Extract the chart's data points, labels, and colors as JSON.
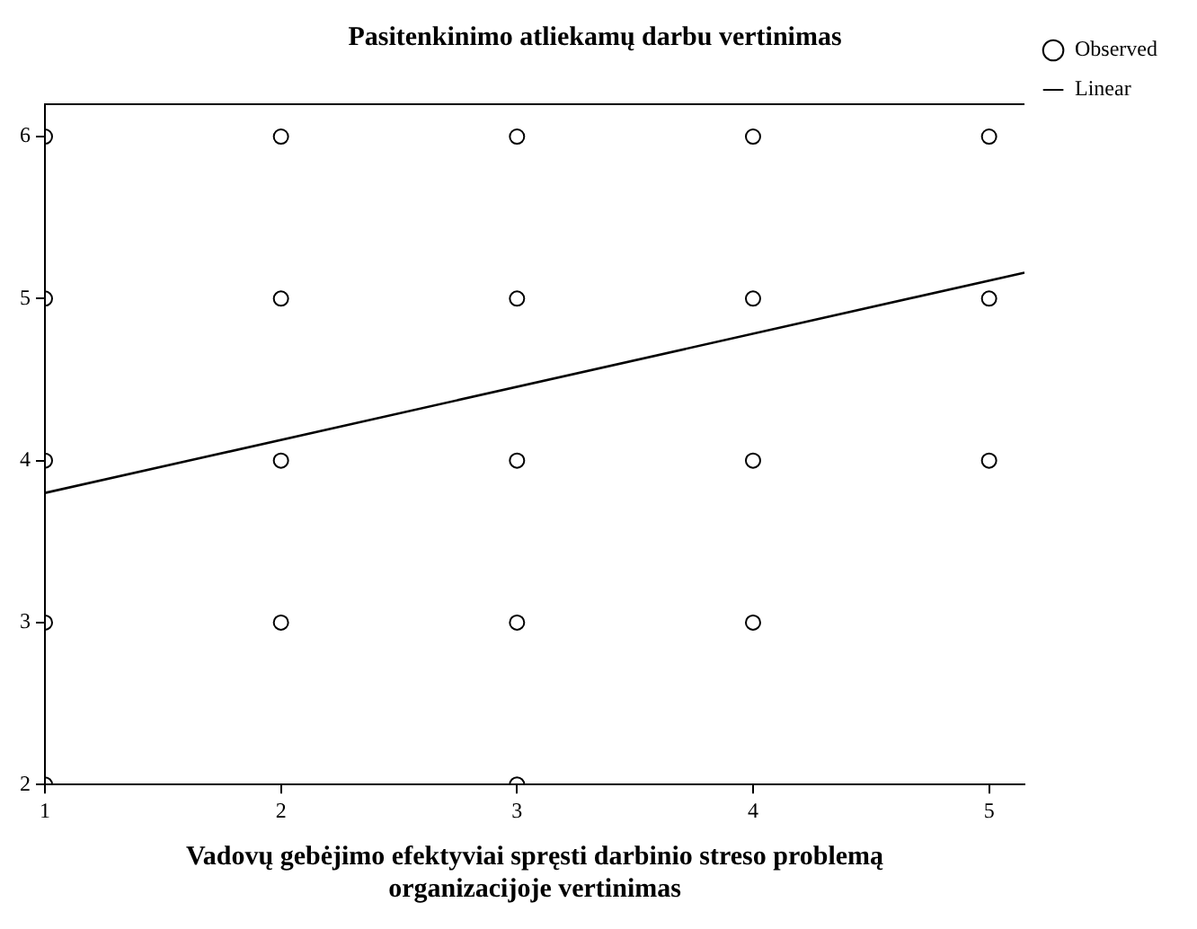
{
  "chart_data": {
    "type": "scatter",
    "title": "Pasitenkinimo atliekamų darbu vertinimas",
    "xlabel": "Vadovų gebėjimo efektyviai spręsti darbinio streso problemą\norganizacijoje vertinimas",
    "series": [
      {
        "name": "Observed",
        "color": "#000000",
        "marker": "circle",
        "x": [
          1,
          1,
          1,
          1,
          1,
          2,
          2,
          2,
          2,
          3,
          3,
          3,
          3,
          3,
          4,
          4,
          4,
          4,
          5,
          5,
          5
        ],
        "values": [
          6,
          5,
          4,
          3,
          2,
          6,
          5,
          4,
          3,
          6,
          5,
          4,
          3,
          2,
          6,
          5,
          4,
          3,
          6,
          5,
          4
        ]
      },
      {
        "name": "Linear",
        "type": "line",
        "color": "#000000",
        "marker": "none",
        "line_style": "solid",
        "x": [
          1,
          5.15
        ],
        "values": [
          3.8,
          5.16
        ]
      }
    ],
    "xlim": [
      1,
      5.15
    ],
    "xticks": [
      1,
      2,
      3,
      4,
      5
    ],
    "ylim": [
      2,
      6.2
    ],
    "yticks": [
      2,
      3,
      4,
      5,
      6
    ],
    "grid": false,
    "legend": "top right"
  }
}
